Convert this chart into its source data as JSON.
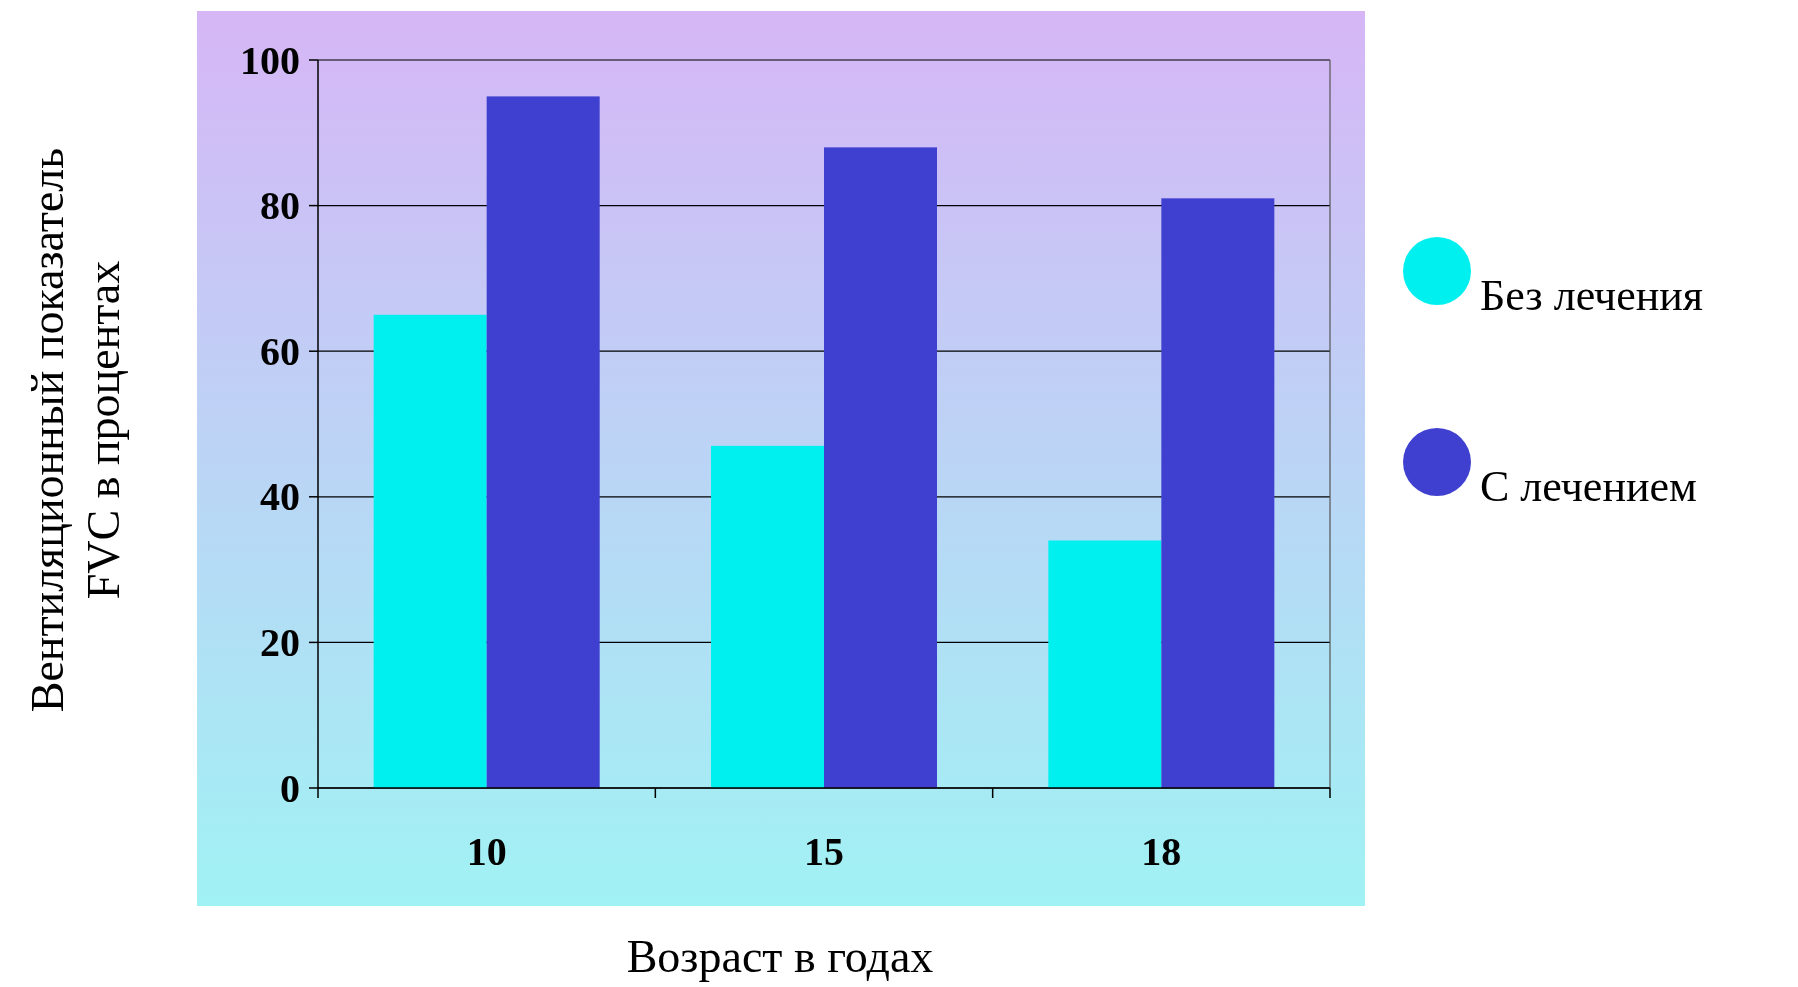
{
  "chart_data": {
    "type": "bar",
    "xlabel": "Возраст в годах",
    "ylabel": "Вентиляционный показатель\nFVC в процентах",
    "categories": [
      "10",
      "15",
      "18"
    ],
    "series": [
      {
        "name": "Без лечения",
        "color": "#00f0f0",
        "values": [
          65,
          47,
          34
        ]
      },
      {
        "name": "С лечением",
        "color": "#4040d0",
        "values": [
          95,
          88,
          81
        ]
      }
    ],
    "ylim": [
      0,
      100
    ],
    "yticks": [
      0,
      20,
      40,
      60,
      80,
      100
    ],
    "grid": "y",
    "legend": "right"
  }
}
